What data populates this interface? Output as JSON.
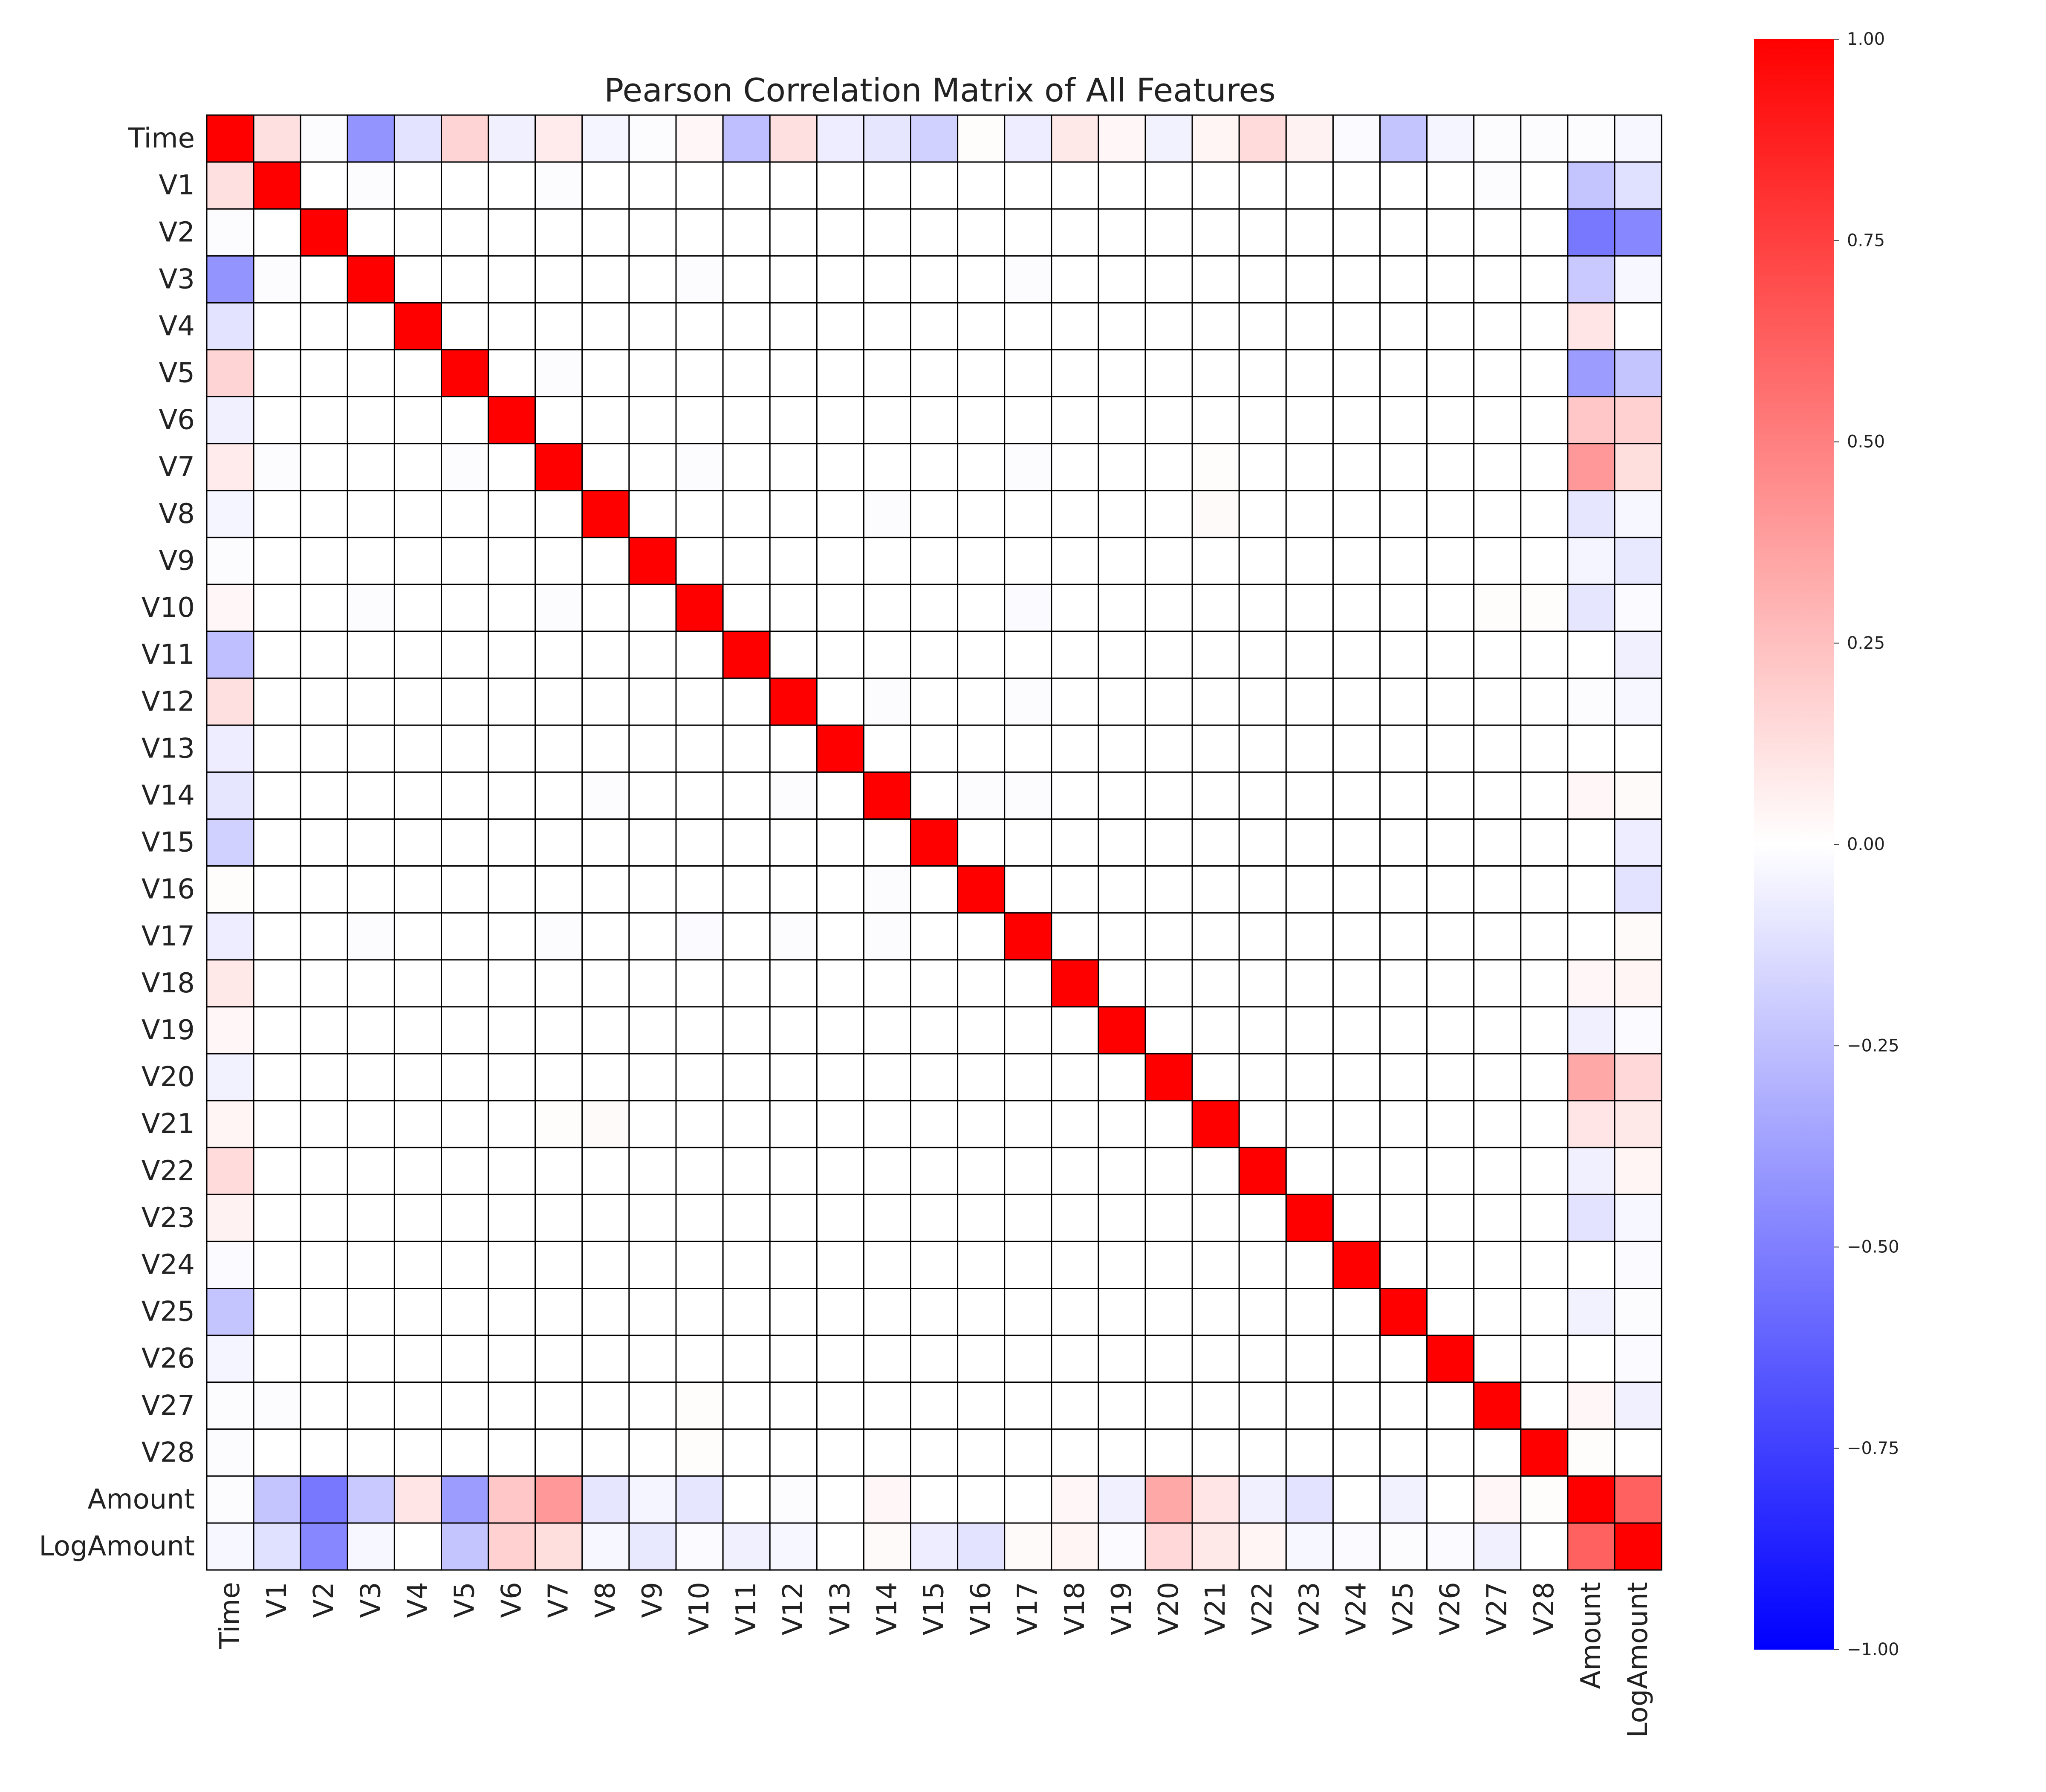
{
  "chart_data": {
    "type": "heatmap",
    "title": "Pearson Correlation Matrix of All Features",
    "xlabel": "",
    "ylabel": "",
    "labels": [
      "Time",
      "V1",
      "V2",
      "V3",
      "V4",
      "V5",
      "V6",
      "V7",
      "V8",
      "V9",
      "V10",
      "V11",
      "V12",
      "V13",
      "V14",
      "V15",
      "V16",
      "V17",
      "V18",
      "V19",
      "V20",
      "V21",
      "V22",
      "V23",
      "V24",
      "V25",
      "V26",
      "V27",
      "V28",
      "Amount",
      "LogAmount"
    ],
    "colormap": "bwr",
    "vmin": -1.0,
    "vmax": 1.0,
    "colorbar_ticks": [
      1.0,
      0.75,
      0.5,
      0.25,
      0.0,
      -0.25,
      -0.5,
      -0.75,
      -1.0
    ],
    "colorbar_tick_labels": [
      "1.00",
      "0.75",
      "0.50",
      "0.25",
      "0.00",
      "−0.25",
      "−0.50",
      "−0.75",
      "−1.00"
    ],
    "colors": {
      "negative_end": "#0000ff",
      "zero": "#ffffff",
      "positive_end": "#ff0000",
      "cell_border": "#000000"
    },
    "pairs": [
      [
        "Time",
        "V1",
        0.12
      ],
      [
        "Time",
        "V2",
        -0.01
      ],
      [
        "Time",
        "V3",
        -0.42
      ],
      [
        "Time",
        "V4",
        -0.11
      ],
      [
        "Time",
        "V5",
        0.17
      ],
      [
        "Time",
        "V6",
        -0.06
      ],
      [
        "Time",
        "V7",
        0.08
      ],
      [
        "Time",
        "V8",
        -0.04
      ],
      [
        "Time",
        "V9",
        -0.01
      ],
      [
        "Time",
        "V10",
        0.03
      ],
      [
        "Time",
        "V11",
        -0.25
      ],
      [
        "Time",
        "V12",
        0.12
      ],
      [
        "Time",
        "V13",
        -0.07
      ],
      [
        "Time",
        "V14",
        -0.1
      ],
      [
        "Time",
        "V15",
        -0.18
      ],
      [
        "Time",
        "V16",
        0.01
      ],
      [
        "Time",
        "V17",
        -0.07
      ],
      [
        "Time",
        "V18",
        0.09
      ],
      [
        "Time",
        "V19",
        0.03
      ],
      [
        "Time",
        "V20",
        -0.05
      ],
      [
        "Time",
        "V21",
        0.04
      ],
      [
        "Time",
        "V22",
        0.14
      ],
      [
        "Time",
        "V23",
        0.05
      ],
      [
        "Time",
        "V24",
        -0.02
      ],
      [
        "Time",
        "V25",
        -0.23
      ],
      [
        "Time",
        "V26",
        -0.04
      ],
      [
        "Time",
        "V27",
        -0.01
      ],
      [
        "Time",
        "V28",
        -0.01
      ],
      [
        "Time",
        "Amount",
        -0.01
      ],
      [
        "Time",
        "LogAmount",
        -0.03
      ],
      [
        "V1",
        "V3",
        -0.01
      ],
      [
        "V1",
        "V7",
        -0.01
      ],
      [
        "V1",
        "V27",
        -0.01
      ],
      [
        "V1",
        "Amount",
        -0.23
      ],
      [
        "V1",
        "LogAmount",
        -0.12
      ],
      [
        "V2",
        "Amount",
        -0.53
      ],
      [
        "V2",
        "LogAmount",
        -0.47
      ],
      [
        "V3",
        "V10",
        -0.01
      ],
      [
        "V3",
        "V17",
        -0.01
      ],
      [
        "V3",
        "Amount",
        -0.21
      ],
      [
        "V3",
        "LogAmount",
        -0.03
      ],
      [
        "V4",
        "Amount",
        0.1
      ],
      [
        "V4",
        "LogAmount",
        0.0
      ],
      [
        "V5",
        "V7",
        -0.01
      ],
      [
        "V5",
        "Amount",
        -0.39
      ],
      [
        "V5",
        "LogAmount",
        -0.23
      ],
      [
        "V6",
        "Amount",
        0.22
      ],
      [
        "V6",
        "LogAmount",
        0.18
      ],
      [
        "V7",
        "V10",
        -0.01
      ],
      [
        "V7",
        "V17",
        -0.01
      ],
      [
        "V7",
        "V21",
        0.01
      ],
      [
        "V7",
        "Amount",
        0.4
      ],
      [
        "V7",
        "LogAmount",
        0.13
      ],
      [
        "V8",
        "V14",
        -0.01
      ],
      [
        "V8",
        "V21",
        0.02
      ],
      [
        "V8",
        "Amount",
        -0.1
      ],
      [
        "V8",
        "LogAmount",
        -0.03
      ],
      [
        "V9",
        "Amount",
        -0.04
      ],
      [
        "V9",
        "LogAmount",
        -0.09
      ],
      [
        "V10",
        "V17",
        -0.02
      ],
      [
        "V10",
        "V27",
        0.01
      ],
      [
        "V10",
        "V28",
        0.01
      ],
      [
        "V10",
        "Amount",
        -0.1
      ],
      [
        "V10",
        "LogAmount",
        -0.02
      ],
      [
        "V11",
        "Amount",
        0.0
      ],
      [
        "V11",
        "LogAmount",
        -0.06
      ],
      [
        "V12",
        "V14",
        -0.01
      ],
      [
        "V12",
        "V17",
        -0.01
      ],
      [
        "V12",
        "Amount",
        -0.01
      ],
      [
        "V12",
        "LogAmount",
        -0.03
      ],
      [
        "V14",
        "V16",
        -0.01
      ],
      [
        "V14",
        "V17",
        -0.01
      ],
      [
        "V14",
        "Amount",
        0.03
      ],
      [
        "V14",
        "LogAmount",
        0.02
      ],
      [
        "V15",
        "LogAmount",
        -0.07
      ],
      [
        "V16",
        "LogAmount",
        -0.11
      ],
      [
        "V17",
        "LogAmount",
        0.02
      ],
      [
        "V18",
        "Amount",
        0.03
      ],
      [
        "V18",
        "LogAmount",
        0.04
      ],
      [
        "V19",
        "Amount",
        -0.06
      ],
      [
        "V19",
        "LogAmount",
        -0.02
      ],
      [
        "V20",
        "Amount",
        0.34
      ],
      [
        "V20",
        "LogAmount",
        0.15
      ],
      [
        "V21",
        "Amount",
        0.1
      ],
      [
        "V21",
        "LogAmount",
        0.09
      ],
      [
        "V22",
        "Amount",
        -0.06
      ],
      [
        "V22",
        "LogAmount",
        0.04
      ],
      [
        "V23",
        "Amount",
        -0.11
      ],
      [
        "V23",
        "LogAmount",
        -0.03
      ],
      [
        "V24",
        "Amount",
        0.0
      ],
      [
        "V24",
        "LogAmount",
        -0.02
      ],
      [
        "V25",
        "Amount",
        -0.05
      ],
      [
        "V25",
        "LogAmount",
        -0.01
      ],
      [
        "V26",
        "Amount",
        0.0
      ],
      [
        "V26",
        "LogAmount",
        -0.02
      ],
      [
        "V27",
        "Amount",
        0.03
      ],
      [
        "V27",
        "LogAmount",
        -0.06
      ],
      [
        "V28",
        "Amount",
        0.01
      ],
      [
        "V28",
        "LogAmount",
        0.0
      ],
      [
        "Amount",
        "LogAmount",
        0.62
      ]
    ]
  }
}
